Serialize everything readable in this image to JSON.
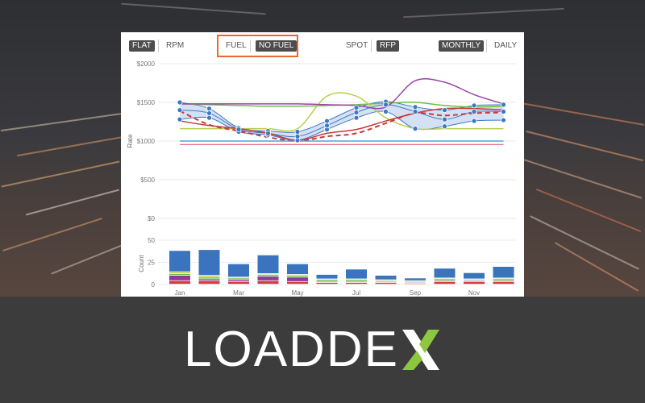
{
  "toolbar": {
    "flat": "FLAT",
    "rpm": "RPM",
    "fuel": "FUEL",
    "no_fuel": "NO FUEL",
    "spot": "SPOT",
    "rfp": "RFP",
    "monthly": "MONTHLY",
    "daily": "DAILY"
  },
  "colors": {
    "highlight": "#e46b2a",
    "band": "#c9daf3",
    "band_line": "#3d78c2",
    "red_dash": "#c8383a",
    "green": "#6cbf43",
    "purple": "#9944aa",
    "olive": "#b7d04a",
    "blue_flat": "#4ba6d8",
    "pink_flat": "#e0607a",
    "bar_blue": "#3a74bf"
  },
  "brand": {
    "text": "LOADDE",
    "mark": "X"
  },
  "chart_data": [
    {
      "type": "line",
      "ylabel": "Rate",
      "ylim": [
        0,
        2000
      ],
      "yticks": [
        "$2000",
        "$1500",
        "$1000",
        "$500",
        "$0"
      ],
      "ytick_values": [
        2000,
        1500,
        1000,
        500,
        0
      ],
      "x": [
        1,
        2,
        3,
        4,
        5,
        6,
        7,
        8,
        9,
        10,
        11,
        12
      ],
      "band": {
        "upper": [
          1500,
          1420,
          1170,
          1130,
          1120,
          1260,
          1430,
          1510,
          1440,
          1400,
          1460,
          1470
        ],
        "lower": [
          1280,
          1300,
          1120,
          1080,
          1010,
          1150,
          1300,
          1380,
          1160,
          1190,
          1260,
          1270
        ],
        "mid": [
          1400,
          1360,
          1150,
          1100,
          1060,
          1200,
          1370,
          1470,
          1380,
          1280,
          1380,
          1380
        ]
      },
      "series": [
        {
          "values": [
            1480,
            1470,
            1460,
            1450,
            1450,
            1460,
            1470,
            1490,
            1500,
            1460,
            1440,
            1450
          ]
        },
        {
          "values": [
            1160,
            1160,
            1160,
            1160,
            1160,
            1580,
            1580,
            1300,
            1160,
            1160,
            1160,
            1160
          ]
        },
        {
          "values": [
            1480,
            1480,
            1480,
            1480,
            1480,
            1470,
            1460,
            1440,
            1780,
            1760,
            1600,
            1480
          ]
        },
        {
          "values": [
            1390,
            1210,
            1130,
            1050,
            1000,
            1060,
            1100,
            1230,
            1360,
            1330,
            1360,
            1370
          ]
        },
        {
          "values": [
            1260,
            1200,
            1160,
            1100,
            1010,
            1100,
            1150,
            1260,
            1360,
            1420,
            1420,
            1400
          ]
        },
        {
          "values": [
            1000,
            1000,
            1000,
            1000,
            1000,
            1000,
            1000,
            1000,
            1000,
            1000,
            1000,
            1000
          ]
        },
        {
          "values": [
            955,
            955,
            955,
            955,
            955,
            955,
            955,
            955,
            955,
            955,
            955,
            955
          ]
        }
      ]
    },
    {
      "type": "bar",
      "ylabel": "Count",
      "ylim": [
        0,
        50
      ],
      "yticks": [
        "50",
        "25",
        "0"
      ],
      "ytick_values": [
        50,
        25,
        0
      ],
      "xticks": [
        "Jan",
        "Mar",
        "May",
        "Jul",
        "Sep",
        "Nov"
      ],
      "xtick_positions": [
        1,
        3,
        5,
        7,
        9,
        11
      ],
      "categories": [
        1,
        2,
        3,
        4,
        5,
        6,
        7,
        8,
        9,
        10,
        11,
        12
      ],
      "series": [
        {
          "values": [
            4,
            4,
            3,
            4,
            3,
            2,
            2,
            2,
            1,
            3,
            3,
            3
          ]
        },
        {
          "values": [
            6,
            2,
            2,
            5,
            5,
            1,
            1,
            1,
            1,
            1,
            1,
            1
          ]
        },
        {
          "values": [
            2,
            2,
            2,
            2,
            2,
            2,
            2,
            1,
            1,
            2,
            1,
            2
          ]
        },
        {
          "values": [
            2,
            2,
            1,
            1,
            1,
            1,
            1,
            1,
            1,
            1,
            1,
            1
          ]
        },
        {
          "values": [
            24,
            29,
            15,
            21,
            12,
            5,
            11,
            5,
            3,
            11,
            7,
            13
          ]
        }
      ]
    }
  ]
}
